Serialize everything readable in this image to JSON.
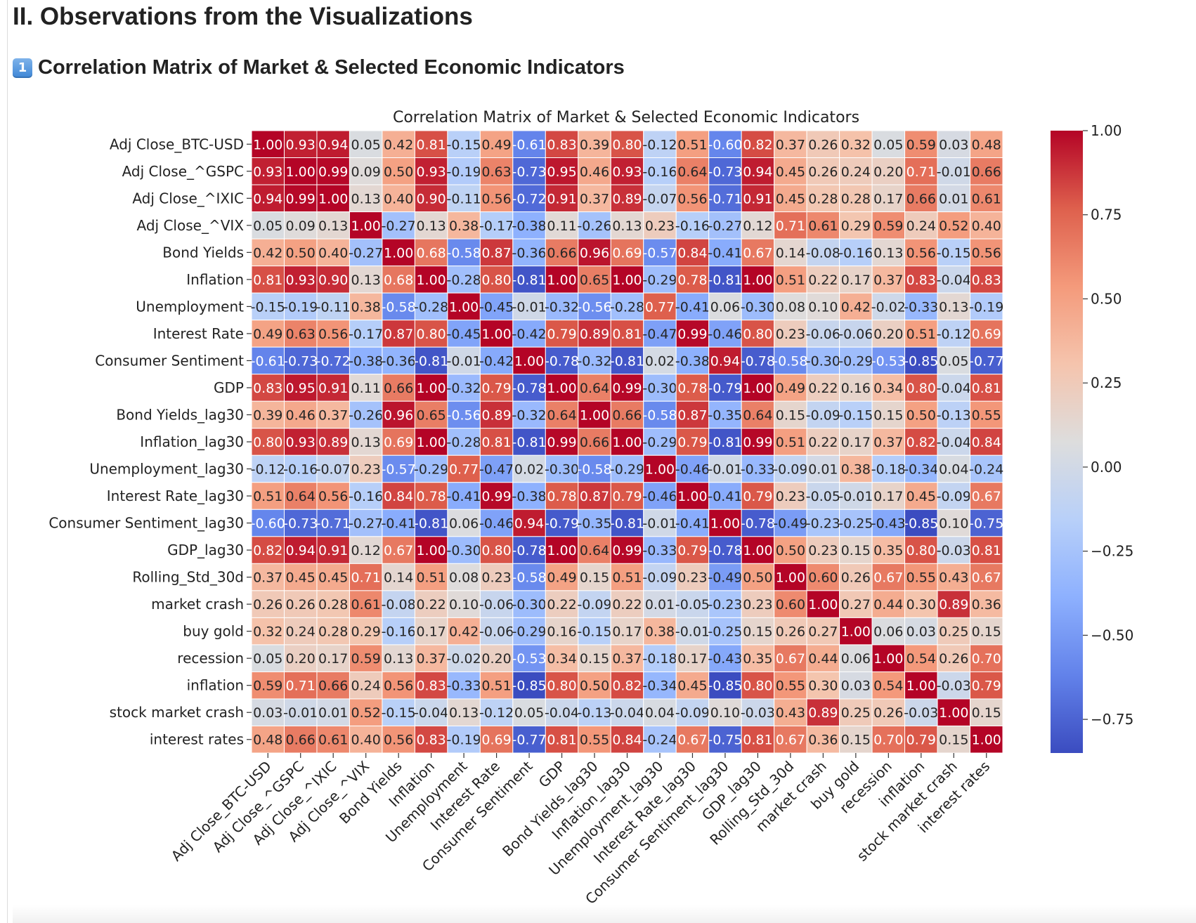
{
  "header": {
    "section_title": "II. Observations from the Visualizations",
    "subsection_icon": "keycap-one-icon",
    "subsection_number": "1",
    "subsection_title": "Correlation Matrix of Market & Selected Economic Indicators"
  },
  "chart_data": {
    "type": "heatmap",
    "title": "Correlation Matrix of Market & Selected Economic Indicators",
    "colormap": "coolwarm",
    "vmin": -0.85,
    "vmax": 1.0,
    "colorbar_ticks": [
      "1.00",
      "0.75",
      "0.50",
      "0.25",
      "0.00",
      "−0.25",
      "−0.50",
      "−0.75"
    ],
    "colorbar_tick_values": [
      1.0,
      0.75,
      0.5,
      0.25,
      0.0,
      -0.25,
      -0.5,
      -0.75
    ],
    "labels": [
      "Adj Close_BTC-USD",
      "Adj Close_^GSPC",
      "Adj Close_^IXIC",
      "Adj Close_^VIX",
      "Bond Yields",
      "Inflation",
      "Unemployment",
      "Interest Rate",
      "Consumer Sentiment",
      "GDP",
      "Bond Yields_lag30",
      "Inflation_lag30",
      "Unemployment_lag30",
      "Interest Rate_lag30",
      "Consumer Sentiment_lag30",
      "GDP_lag30",
      "Rolling_Std_30d",
      "market crash",
      "buy gold",
      "recession",
      "inflation",
      "stock market crash",
      "interest rates"
    ],
    "values": [
      [
        1.0,
        0.93,
        0.94,
        0.05,
        0.42,
        0.81,
        -0.15,
        0.49,
        -0.61,
        0.83,
        0.39,
        0.8,
        -0.12,
        0.51,
        -0.6,
        0.82,
        0.37,
        0.26,
        0.32,
        0.05,
        0.59,
        0.03,
        0.48
      ],
      [
        0.93,
        1.0,
        0.99,
        0.09,
        0.5,
        0.93,
        -0.19,
        0.63,
        -0.73,
        0.95,
        0.46,
        0.93,
        -0.16,
        0.64,
        -0.73,
        0.94,
        0.45,
        0.26,
        0.24,
        0.2,
        0.71,
        -0.01,
        0.66
      ],
      [
        0.94,
        0.99,
        1.0,
        0.13,
        0.4,
        0.9,
        -0.11,
        0.56,
        -0.72,
        0.91,
        0.37,
        0.89,
        -0.07,
        0.56,
        -0.71,
        0.91,
        0.45,
        0.28,
        0.28,
        0.17,
        0.66,
        0.01,
        0.61
      ],
      [
        0.05,
        0.09,
        0.13,
        1.0,
        -0.27,
        0.13,
        0.38,
        -0.17,
        -0.38,
        0.11,
        -0.26,
        0.13,
        0.23,
        -0.16,
        -0.27,
        0.12,
        0.71,
        0.61,
        0.29,
        0.59,
        0.24,
        0.52,
        0.4
      ],
      [
        0.42,
        0.5,
        0.4,
        -0.27,
        1.0,
        0.68,
        -0.58,
        0.87,
        -0.36,
        0.66,
        0.96,
        0.69,
        -0.57,
        0.84,
        -0.41,
        0.67,
        0.14,
        -0.08,
        -0.16,
        0.13,
        0.56,
        -0.15,
        0.56
      ],
      [
        0.81,
        0.93,
        0.9,
        0.13,
        0.68,
        1.0,
        -0.28,
        0.8,
        -0.81,
        1.0,
        0.65,
        1.0,
        -0.29,
        0.78,
        -0.81,
        1.0,
        0.51,
        0.22,
        0.17,
        0.37,
        0.83,
        -0.04,
        0.83
      ],
      [
        -0.15,
        -0.19,
        -0.11,
        0.38,
        -0.58,
        -0.28,
        1.0,
        -0.45,
        -0.01,
        -0.32,
        -0.56,
        -0.28,
        0.77,
        -0.41,
        0.06,
        -0.3,
        0.08,
        0.1,
        0.42,
        -0.02,
        -0.33,
        0.13,
        -0.19
      ],
      [
        0.49,
        0.63,
        0.56,
        -0.17,
        0.87,
        0.8,
        -0.45,
        1.0,
        -0.42,
        0.79,
        0.89,
        0.81,
        -0.47,
        0.99,
        -0.46,
        0.8,
        0.23,
        -0.06,
        -0.06,
        0.2,
        0.51,
        -0.12,
        0.69
      ],
      [
        -0.61,
        -0.73,
        -0.72,
        -0.38,
        -0.36,
        -0.81,
        -0.01,
        -0.42,
        1.0,
        -0.78,
        -0.32,
        -0.81,
        0.02,
        -0.38,
        0.94,
        -0.78,
        -0.58,
        -0.3,
        -0.29,
        -0.53,
        -0.85,
        0.05,
        -0.77
      ],
      [
        0.83,
        0.95,
        0.91,
        0.11,
        0.66,
        1.0,
        -0.32,
        0.79,
        -0.78,
        1.0,
        0.64,
        0.99,
        -0.3,
        0.78,
        -0.79,
        1.0,
        0.49,
        0.22,
        0.16,
        0.34,
        0.8,
        -0.04,
        0.81
      ],
      [
        0.39,
        0.46,
        0.37,
        -0.26,
        0.96,
        0.65,
        -0.56,
        0.89,
        -0.32,
        0.64,
        1.0,
        0.66,
        -0.58,
        0.87,
        -0.35,
        0.64,
        0.15,
        -0.09,
        -0.15,
        0.15,
        0.5,
        -0.13,
        0.55
      ],
      [
        0.8,
        0.93,
        0.89,
        0.13,
        0.69,
        1.0,
        -0.28,
        0.81,
        -0.81,
        0.99,
        0.66,
        1.0,
        -0.29,
        0.79,
        -0.81,
        0.99,
        0.51,
        0.22,
        0.17,
        0.37,
        0.82,
        -0.04,
        0.84
      ],
      [
        -0.12,
        -0.16,
        -0.07,
        0.23,
        -0.57,
        -0.29,
        0.77,
        -0.47,
        0.02,
        -0.3,
        -0.58,
        -0.29,
        1.0,
        -0.46,
        -0.01,
        -0.33,
        -0.09,
        0.01,
        0.38,
        -0.18,
        -0.34,
        0.04,
        -0.24
      ],
      [
        0.51,
        0.64,
        0.56,
        -0.16,
        0.84,
        0.78,
        -0.41,
        0.99,
        -0.38,
        0.78,
        0.87,
        0.79,
        -0.46,
        1.0,
        -0.41,
        0.79,
        0.23,
        -0.05,
        -0.01,
        0.17,
        0.45,
        -0.09,
        0.67
      ],
      [
        -0.6,
        -0.73,
        -0.71,
        -0.27,
        -0.41,
        -0.81,
        0.06,
        -0.46,
        0.94,
        -0.79,
        -0.35,
        -0.81,
        -0.01,
        -0.41,
        1.0,
        -0.78,
        -0.49,
        -0.23,
        -0.25,
        -0.43,
        -0.85,
        0.1,
        -0.75
      ],
      [
        0.82,
        0.94,
        0.91,
        0.12,
        0.67,
        1.0,
        -0.3,
        0.8,
        -0.78,
        1.0,
        0.64,
        0.99,
        -0.33,
        0.79,
        -0.78,
        1.0,
        0.5,
        0.23,
        0.15,
        0.35,
        0.8,
        -0.03,
        0.81
      ],
      [
        0.37,
        0.45,
        0.45,
        0.71,
        0.14,
        0.51,
        0.08,
        0.23,
        -0.58,
        0.49,
        0.15,
        0.51,
        -0.09,
        0.23,
        -0.49,
        0.5,
        1.0,
        0.6,
        0.26,
        0.67,
        0.55,
        0.43,
        0.67
      ],
      [
        0.26,
        0.26,
        0.28,
        0.61,
        -0.08,
        0.22,
        0.1,
        -0.06,
        -0.3,
        0.22,
        -0.09,
        0.22,
        0.01,
        -0.05,
        -0.23,
        0.23,
        0.6,
        1.0,
        0.27,
        0.44,
        0.3,
        0.89,
        0.36
      ],
      [
        0.32,
        0.24,
        0.28,
        0.29,
        -0.16,
        0.17,
        0.42,
        -0.06,
        -0.29,
        0.16,
        -0.15,
        0.17,
        0.38,
        -0.01,
        -0.25,
        0.15,
        0.26,
        0.27,
        1.0,
        0.06,
        0.03,
        0.25,
        0.15
      ],
      [
        0.05,
        0.2,
        0.17,
        0.59,
        0.13,
        0.37,
        -0.02,
        0.2,
        -0.53,
        0.34,
        0.15,
        0.37,
        -0.18,
        0.17,
        -0.43,
        0.35,
        0.67,
        0.44,
        0.06,
        1.0,
        0.54,
        0.26,
        0.7
      ],
      [
        0.59,
        0.71,
        0.66,
        0.24,
        0.56,
        0.83,
        -0.33,
        0.51,
        -0.85,
        0.8,
        0.5,
        0.82,
        -0.34,
        0.45,
        -0.85,
        0.8,
        0.55,
        0.3,
        0.03,
        0.54,
        1.0,
        -0.03,
        0.79
      ],
      [
        0.03,
        -0.01,
        0.01,
        0.52,
        -0.15,
        -0.04,
        0.13,
        -0.12,
        0.05,
        -0.04,
        -0.13,
        -0.04,
        0.04,
        -0.09,
        0.1,
        -0.03,
        0.43,
        0.89,
        0.25,
        0.26,
        -0.03,
        1.0,
        0.15
      ],
      [
        0.48,
        0.66,
        0.61,
        0.4,
        0.56,
        0.83,
        -0.19,
        0.69,
        -0.77,
        0.81,
        0.55,
        0.84,
        -0.24,
        0.67,
        -0.75,
        0.81,
        0.67,
        0.36,
        0.15,
        0.7,
        0.79,
        0.15,
        1.0
      ]
    ]
  }
}
